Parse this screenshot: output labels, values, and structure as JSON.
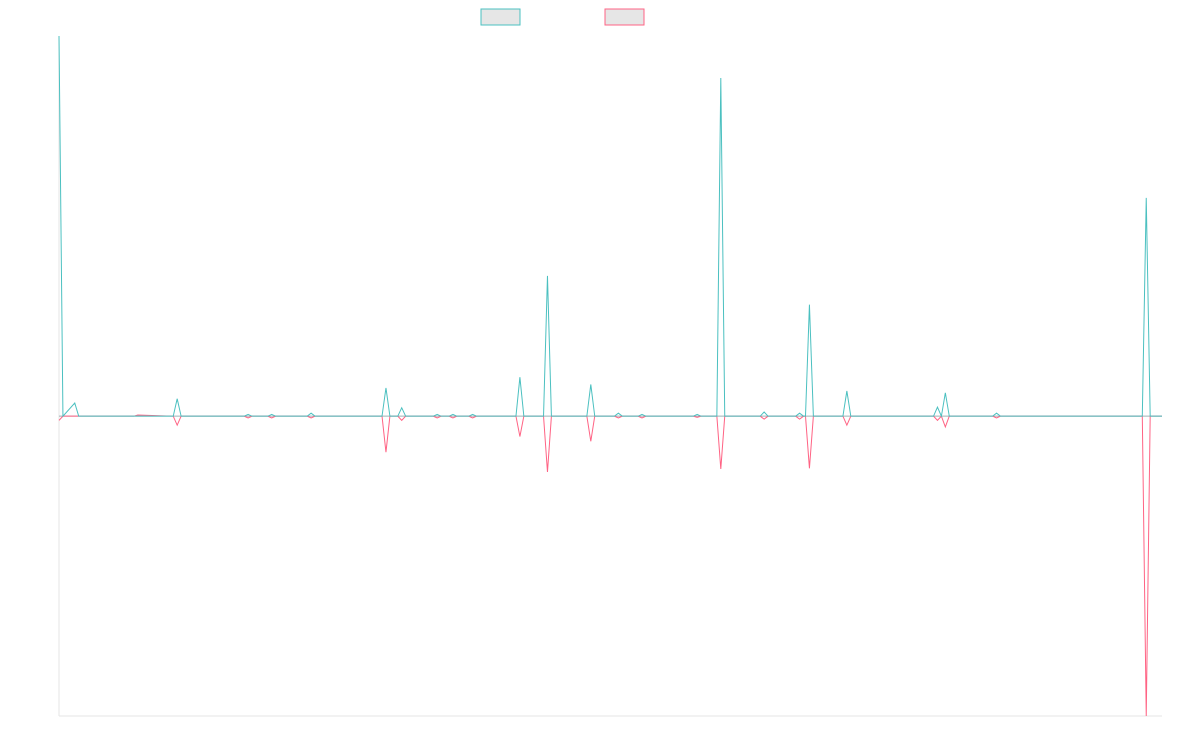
{
  "chart_data": {
    "type": "line",
    "title": "",
    "xlabel": "",
    "ylabel": "",
    "x_range": [
      0,
      280
    ],
    "ylim": [
      -0.5,
      0.634
    ],
    "grid": false,
    "legend_position": "top-center",
    "series": [
      {
        "color": "#4bc0c0",
        "points": [
          [
            0,
            0.634
          ],
          [
            1,
            0
          ],
          [
            4,
            0.022
          ],
          [
            5,
            0
          ],
          [
            19,
            0
          ],
          [
            20,
            0
          ],
          [
            29,
            0
          ],
          [
            30,
            0.029
          ],
          [
            31,
            0
          ],
          [
            32,
            0
          ],
          [
            47,
            0
          ],
          [
            48,
            0.003
          ],
          [
            49,
            0
          ],
          [
            53,
            0
          ],
          [
            54,
            0.003
          ],
          [
            55,
            0
          ],
          [
            63,
            0
          ],
          [
            64,
            0.005
          ],
          [
            65,
            0
          ],
          [
            82,
            0
          ],
          [
            83,
            0.047
          ],
          [
            84,
            0
          ],
          [
            86,
            0
          ],
          [
            87,
            0.014
          ],
          [
            88,
            0
          ],
          [
            95,
            0
          ],
          [
            96,
            0.003
          ],
          [
            97,
            0
          ],
          [
            99,
            0
          ],
          [
            100,
            0.003
          ],
          [
            101,
            0
          ],
          [
            104,
            0
          ],
          [
            105,
            0.003
          ],
          [
            106,
            0
          ],
          [
            116,
            0
          ],
          [
            117,
            0.065
          ],
          [
            118,
            0
          ],
          [
            123,
            0
          ],
          [
            124,
            0.234
          ],
          [
            125,
            0
          ],
          [
            134,
            0
          ],
          [
            135,
            0.053
          ],
          [
            136,
            0
          ],
          [
            141,
            0
          ],
          [
            142,
            0.005
          ],
          [
            143,
            0
          ],
          [
            147,
            0
          ],
          [
            148,
            0.003
          ],
          [
            149,
            0
          ],
          [
            161,
            0
          ],
          [
            162,
            0.003
          ],
          [
            163,
            0
          ],
          [
            167,
            0
          ],
          [
            168,
            0.564
          ],
          [
            169,
            0
          ],
          [
            178,
            0
          ],
          [
            179,
            0.007
          ],
          [
            180,
            0
          ],
          [
            187,
            0
          ],
          [
            188,
            0.005
          ],
          [
            189,
            0
          ],
          [
            189.5,
            0
          ],
          [
            190.5,
            0.186
          ],
          [
            191.5,
            0
          ],
          [
            199,
            0
          ],
          [
            200,
            0.042
          ],
          [
            201,
            0
          ],
          [
            222,
            0
          ],
          [
            223,
            0.015
          ],
          [
            224,
            0
          ],
          [
            225,
            0.039
          ],
          [
            226,
            0
          ],
          [
            237,
            0
          ],
          [
            238,
            0.005
          ],
          [
            239,
            0
          ],
          [
            275,
            0
          ],
          [
            276,
            0.364
          ],
          [
            277,
            0
          ],
          [
            280,
            0
          ]
        ]
      },
      {
        "color": "#ff6384",
        "points": [
          [
            0,
            -0.007
          ],
          [
            1,
            0
          ],
          [
            4,
            0
          ],
          [
            5,
            0
          ],
          [
            19,
            0
          ],
          [
            20,
            0.002
          ],
          [
            29,
            0
          ],
          [
            30,
            -0.015
          ],
          [
            31,
            0
          ],
          [
            32,
            0
          ],
          [
            47,
            0
          ],
          [
            48,
            -0.003
          ],
          [
            49,
            0
          ],
          [
            53,
            0
          ],
          [
            54,
            -0.003
          ],
          [
            55,
            0
          ],
          [
            63,
            0
          ],
          [
            64,
            -0.003
          ],
          [
            65,
            0
          ],
          [
            82,
            0
          ],
          [
            83,
            -0.06
          ],
          [
            84,
            0
          ],
          [
            86,
            0
          ],
          [
            87,
            -0.007
          ],
          [
            88,
            0
          ],
          [
            95,
            0
          ],
          [
            96,
            -0.003
          ],
          [
            97,
            0
          ],
          [
            99,
            0
          ],
          [
            100,
            -0.003
          ],
          [
            101,
            0
          ],
          [
            104,
            0
          ],
          [
            105,
            -0.003
          ],
          [
            106,
            0
          ],
          [
            116,
            0
          ],
          [
            117,
            -0.034
          ],
          [
            118,
            0
          ],
          [
            123,
            0
          ],
          [
            124,
            -0.093
          ],
          [
            125,
            0
          ],
          [
            134,
            0
          ],
          [
            135,
            -0.042
          ],
          [
            136,
            0
          ],
          [
            141,
            0
          ],
          [
            142,
            -0.003
          ],
          [
            143,
            0
          ],
          [
            147,
            0
          ],
          [
            148,
            -0.003
          ],
          [
            149,
            0
          ],
          [
            161,
            0
          ],
          [
            162,
            -0.002
          ],
          [
            163,
            0
          ],
          [
            167,
            0
          ],
          [
            168,
            -0.088
          ],
          [
            169,
            0
          ],
          [
            178,
            0
          ],
          [
            179,
            -0.005
          ],
          [
            180,
            0
          ],
          [
            187,
            0
          ],
          [
            188,
            -0.005
          ],
          [
            189,
            0
          ],
          [
            189.5,
            0
          ],
          [
            190.5,
            -0.087
          ],
          [
            191.5,
            0
          ],
          [
            199,
            0
          ],
          [
            200,
            -0.015
          ],
          [
            201,
            0
          ],
          [
            222,
            0
          ],
          [
            223,
            -0.007
          ],
          [
            224,
            0
          ],
          [
            225,
            -0.018
          ],
          [
            226,
            0
          ],
          [
            237,
            0
          ],
          [
            238,
            -0.003
          ],
          [
            239,
            0
          ],
          [
            275,
            0
          ],
          [
            276,
            -0.5
          ],
          [
            277,
            0
          ],
          [
            280,
            0
          ]
        ]
      }
    ],
    "legend": [
      {
        "fill": "#e6e6e6",
        "stroke": "#4bc0c0"
      },
      {
        "fill": "#e6e6e6",
        "stroke": "#ff6384"
      }
    ]
  }
}
